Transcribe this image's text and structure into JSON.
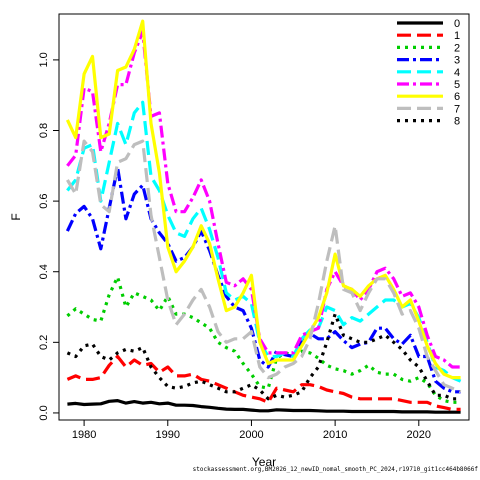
{
  "chart_data": {
    "type": "line",
    "title": "",
    "xlabel": "Year",
    "ylabel": "F",
    "xlim": [
      1977,
      2026
    ],
    "ylim": [
      -0.02,
      1.13
    ],
    "xticks": [
      1980,
      1990,
      2000,
      2010,
      2020
    ],
    "yticks": [
      0.0,
      0.2,
      0.4,
      0.6,
      0.8,
      1.0
    ],
    "ytick_labels": [
      "0.0",
      "0.2",
      "0.4",
      "0.6",
      "0.8",
      "1.0"
    ],
    "legend_position": "top-right",
    "grid": false,
    "x": [
      1978,
      1979,
      1980,
      1981,
      1982,
      1983,
      1984,
      1985,
      1986,
      1987,
      1988,
      1989,
      1990,
      1991,
      1992,
      1993,
      1994,
      1995,
      1996,
      1997,
      1998,
      1999,
      2000,
      2001,
      2002,
      2003,
      2004,
      2005,
      2006,
      2007,
      2008,
      2009,
      2010,
      2011,
      2012,
      2013,
      2014,
      2015,
      2016,
      2017,
      2018,
      2019,
      2020,
      2021,
      2022,
      2023,
      2024,
      2025
    ],
    "series": [
      {
        "name": "0",
        "color": "#000000",
        "dash": "solid",
        "values": [
          0.025,
          0.027,
          0.024,
          0.025,
          0.026,
          0.033,
          0.035,
          0.028,
          0.032,
          0.028,
          0.03,
          0.026,
          0.028,
          0.022,
          0.022,
          0.021,
          0.018,
          0.016,
          0.013,
          0.011,
          0.01,
          0.01,
          0.008,
          0.006,
          0.006,
          0.009,
          0.008,
          0.007,
          0.007,
          0.007,
          0.006,
          0.005,
          0.005,
          0.005,
          0.004,
          0.004,
          0.004,
          0.004,
          0.004,
          0.004,
          0.003,
          0.003,
          0.003,
          0.003,
          0.002,
          0.002,
          0.002,
          0.002
        ]
      },
      {
        "name": "1",
        "color": "#ff0000",
        "dash": "long",
        "values": [
          0.095,
          0.105,
          0.095,
          0.095,
          0.1,
          0.135,
          0.16,
          0.13,
          0.15,
          0.135,
          0.14,
          0.115,
          0.13,
          0.105,
          0.105,
          0.11,
          0.095,
          0.09,
          0.08,
          0.07,
          0.06,
          0.05,
          0.045,
          0.04,
          0.03,
          0.07,
          0.065,
          0.06,
          0.08,
          0.08,
          0.075,
          0.065,
          0.06,
          0.055,
          0.045,
          0.04,
          0.04,
          0.04,
          0.04,
          0.04,
          0.035,
          0.03,
          0.03,
          0.03,
          0.02,
          0.015,
          0.01,
          0.01
        ]
      },
      {
        "name": "2",
        "color": "#00cd00",
        "dash": "dot",
        "values": [
          0.275,
          0.295,
          0.28,
          0.265,
          0.26,
          0.335,
          0.385,
          0.3,
          0.34,
          0.33,
          0.32,
          0.29,
          0.33,
          0.28,
          0.28,
          0.27,
          0.255,
          0.24,
          0.2,
          0.185,
          0.175,
          0.14,
          0.11,
          0.075,
          0.07,
          0.155,
          0.17,
          0.165,
          0.175,
          0.17,
          0.155,
          0.135,
          0.125,
          0.12,
          0.11,
          0.12,
          0.135,
          0.115,
          0.11,
          0.11,
          0.095,
          0.09,
          0.1,
          0.085,
          0.05,
          0.035,
          0.03,
          0.03
        ]
      },
      {
        "name": "3",
        "color": "#0000ff",
        "dash": "dashdot",
        "values": [
          0.515,
          0.565,
          0.585,
          0.55,
          0.465,
          0.58,
          0.695,
          0.55,
          0.62,
          0.645,
          0.55,
          0.51,
          0.48,
          0.43,
          0.44,
          0.47,
          0.515,
          0.46,
          0.39,
          0.33,
          0.3,
          0.29,
          0.24,
          0.15,
          0.13,
          0.175,
          0.165,
          0.16,
          0.205,
          0.225,
          0.21,
          0.21,
          0.23,
          0.205,
          0.185,
          0.195,
          0.2,
          0.24,
          0.24,
          0.21,
          0.195,
          0.22,
          0.16,
          0.16,
          0.09,
          0.07,
          0.06,
          0.06
        ]
      },
      {
        "name": "4",
        "color": "#00ffff",
        "dash": "long",
        "values": [
          0.63,
          0.66,
          0.75,
          0.76,
          0.6,
          0.71,
          0.82,
          0.76,
          0.85,
          0.88,
          0.67,
          0.63,
          0.56,
          0.51,
          0.5,
          0.55,
          0.58,
          0.52,
          0.44,
          0.34,
          0.32,
          0.33,
          0.31,
          0.2,
          0.16,
          0.16,
          0.17,
          0.16,
          0.21,
          0.235,
          0.24,
          0.3,
          0.29,
          0.25,
          0.27,
          0.26,
          0.28,
          0.3,
          0.32,
          0.32,
          0.3,
          0.31,
          0.27,
          0.2,
          0.13,
          0.12,
          0.1,
          0.09
        ]
      },
      {
        "name": "5",
        "color": "#ff00ff",
        "dash": "dashdot",
        "values": [
          0.7,
          0.73,
          0.92,
          0.91,
          0.74,
          0.82,
          0.93,
          0.93,
          1.02,
          1.08,
          0.84,
          0.85,
          0.65,
          0.57,
          0.57,
          0.61,
          0.66,
          0.6,
          0.48,
          0.37,
          0.36,
          0.38,
          0.35,
          0.21,
          0.17,
          0.17,
          0.17,
          0.17,
          0.22,
          0.23,
          0.24,
          0.35,
          0.4,
          0.36,
          0.35,
          0.32,
          0.35,
          0.4,
          0.41,
          0.38,
          0.33,
          0.34,
          0.3,
          0.22,
          0.16,
          0.15,
          0.13,
          0.13
        ]
      },
      {
        "name": "6",
        "color": "#ffff00",
        "dash": "solid",
        "values": [
          0.83,
          0.78,
          0.96,
          1.01,
          0.78,
          0.79,
          0.97,
          0.98,
          1.03,
          1.11,
          0.82,
          0.68,
          0.47,
          0.4,
          0.43,
          0.47,
          0.53,
          0.48,
          0.38,
          0.29,
          0.3,
          0.34,
          0.39,
          0.2,
          0.14,
          0.15,
          0.15,
          0.15,
          0.19,
          0.23,
          0.27,
          0.34,
          0.45,
          0.36,
          0.35,
          0.33,
          0.36,
          0.38,
          0.39,
          0.35,
          0.3,
          0.32,
          0.26,
          0.19,
          0.14,
          0.11,
          0.1,
          0.1
        ]
      },
      {
        "name": "7",
        "color": "#bebebe",
        "dash": "long",
        "values": [
          0.66,
          0.62,
          0.77,
          0.74,
          0.59,
          0.57,
          0.71,
          0.72,
          0.76,
          0.77,
          0.56,
          0.44,
          0.32,
          0.25,
          0.28,
          0.32,
          0.35,
          0.3,
          0.23,
          0.2,
          0.21,
          0.21,
          0.23,
          0.13,
          0.1,
          0.11,
          0.13,
          0.14,
          0.16,
          0.21,
          0.31,
          0.43,
          0.53,
          0.35,
          0.34,
          0.29,
          0.34,
          0.38,
          0.38,
          0.34,
          0.28,
          0.29,
          0.24,
          0.16,
          0.12,
          0.08,
          0.07,
          0.06
        ]
      },
      {
        "name": "8",
        "color": "#000000",
        "dash": "dot",
        "values": [
          0.17,
          0.16,
          0.19,
          0.195,
          0.16,
          0.15,
          0.17,
          0.18,
          0.175,
          0.185,
          0.13,
          0.1,
          0.075,
          0.07,
          0.075,
          0.085,
          0.09,
          0.08,
          0.07,
          0.06,
          0.06,
          0.07,
          0.08,
          0.065,
          0.04,
          0.05,
          0.045,
          0.05,
          0.06,
          0.1,
          0.13,
          0.2,
          0.28,
          0.22,
          0.21,
          0.2,
          0.2,
          0.21,
          0.22,
          0.2,
          0.18,
          0.15,
          0.13,
          0.09,
          0.05,
          0.05,
          0.04,
          0.04
        ]
      }
    ]
  },
  "footnote": "stockassessment.org,BM2026_12_newID_nomal_smooth_PC_2024,r19710_git1cc464b8066f"
}
